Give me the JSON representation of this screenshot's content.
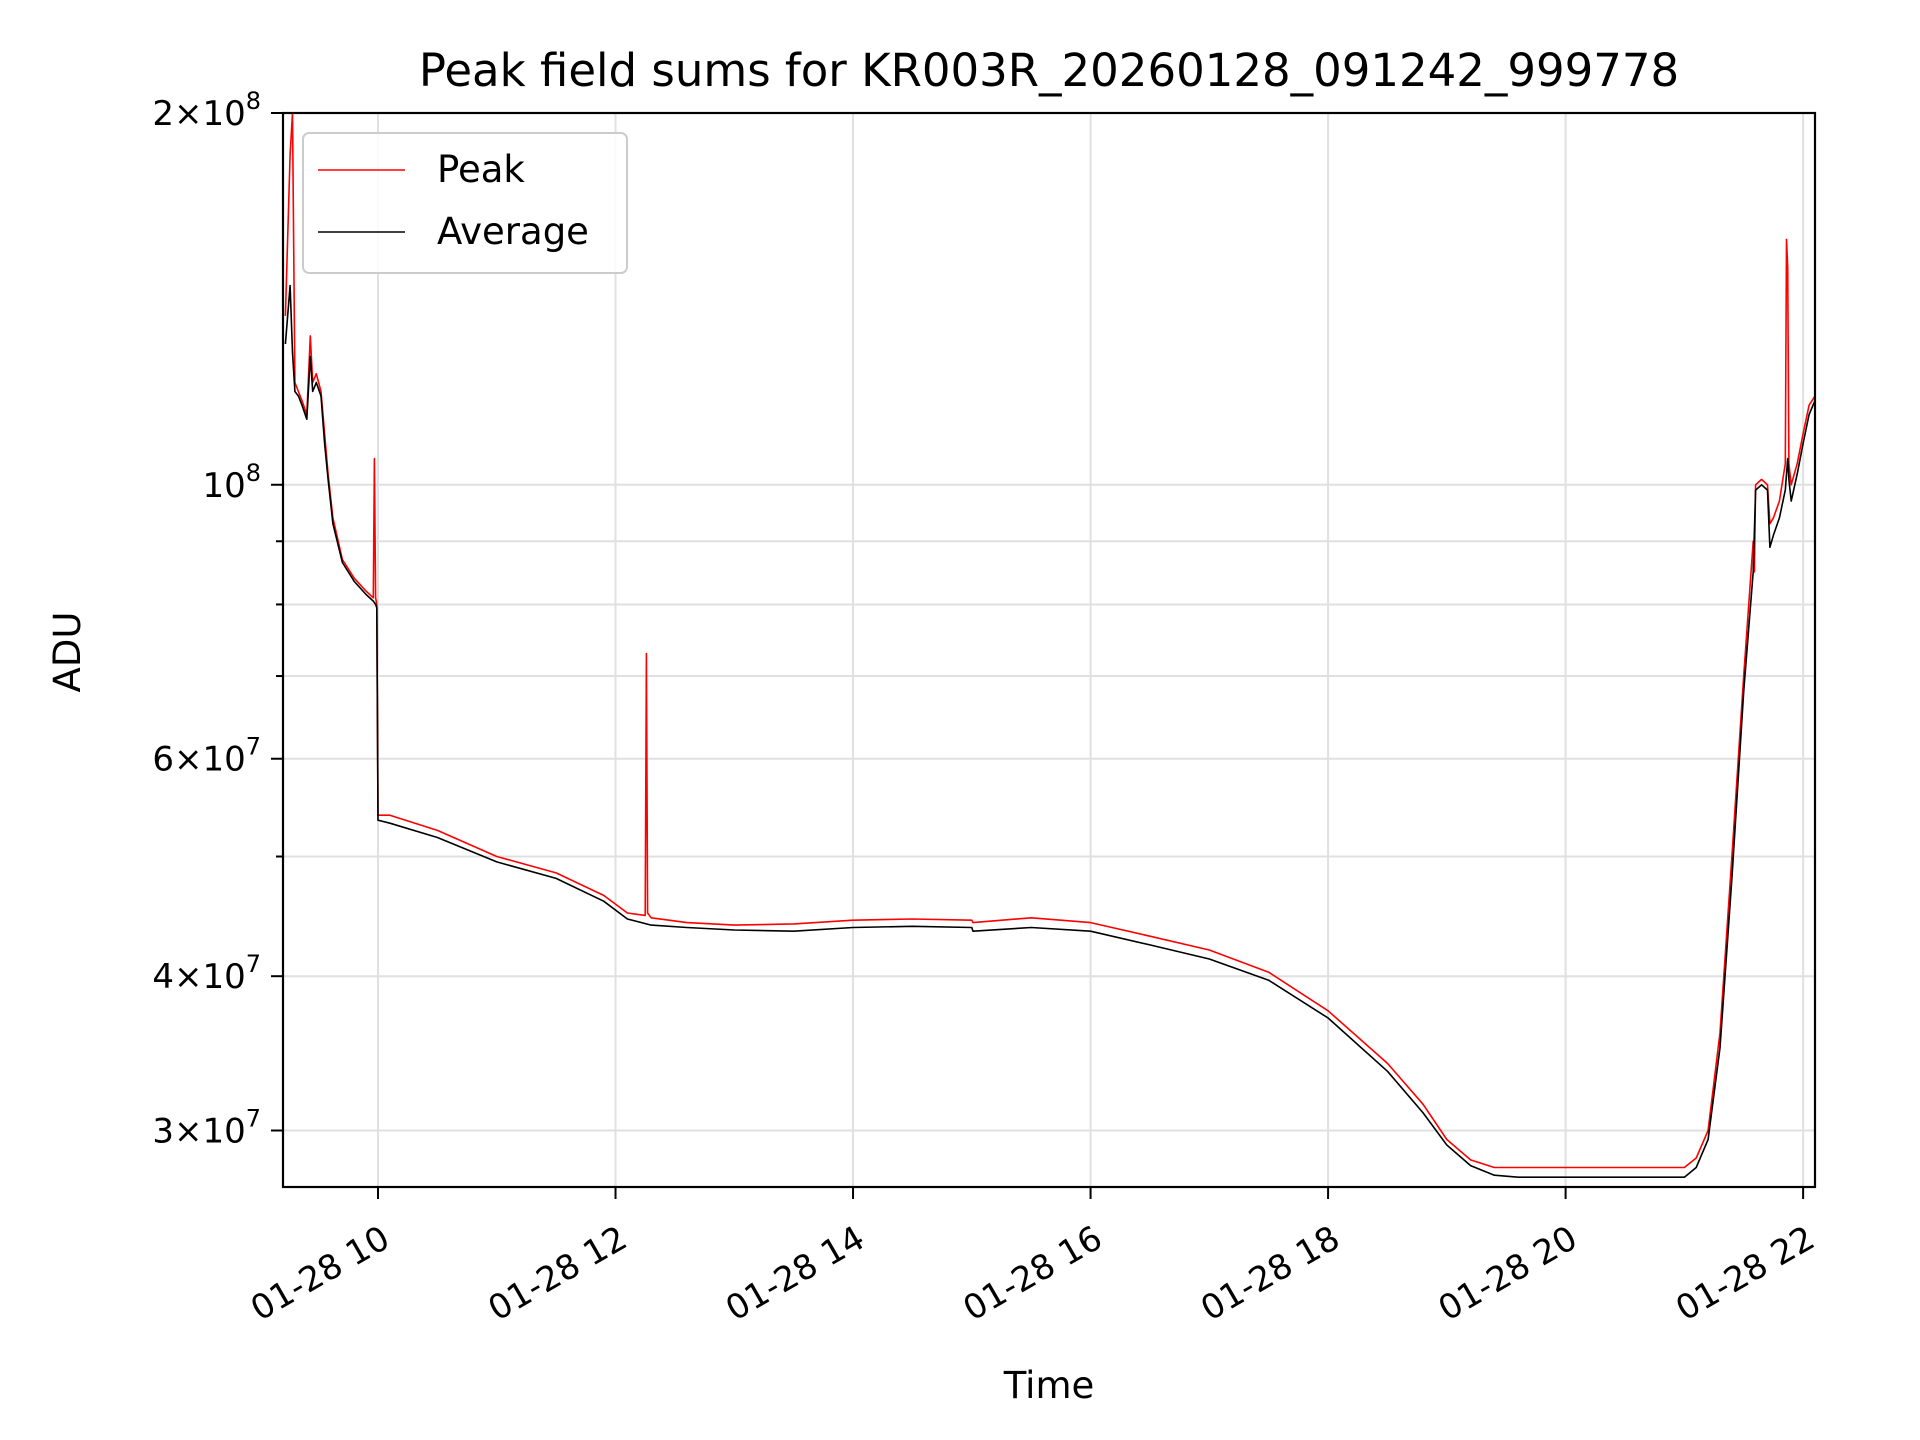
{
  "chart_data": {
    "type": "line",
    "title": "Peak field sums for KR003R_20260128_091242_999778",
    "xlabel": "Time",
    "ylabel": "ADU",
    "xlim": [
      9.2,
      22.1
    ],
    "x_unit": "hours on 01-28",
    "ylim": [
      27000000,
      200000000
    ],
    "yscale": "log",
    "grid": true,
    "legend_position": "upper left",
    "x_ticks": [
      {
        "value": 10,
        "label": "01-28 10"
      },
      {
        "value": 12,
        "label": "01-28 12"
      },
      {
        "value": 14,
        "label": "01-28 14"
      },
      {
        "value": 16,
        "label": "01-28 16"
      },
      {
        "value": 18,
        "label": "01-28 18"
      },
      {
        "value": 20,
        "label": "01-28 20"
      },
      {
        "value": 22,
        "label": "01-28 22"
      }
    ],
    "y_major_ticks": [
      {
        "value": 30000000,
        "mant": "3",
        "exp": "7"
      },
      {
        "value": 40000000,
        "mant": "4",
        "exp": "7"
      },
      {
        "value": 60000000,
        "mant": "6",
        "exp": "7"
      },
      {
        "value": 100000000,
        "mant": "",
        "exp": "8"
      },
      {
        "value": 200000000,
        "mant": "2",
        "exp": "8"
      }
    ],
    "y_minor_grid": [
      50000000,
      70000000,
      80000000,
      90000000
    ],
    "series": [
      {
        "name": "Peak",
        "color": "#ff0000",
        "x": [
          9.22,
          9.26,
          9.28,
          9.3,
          9.33,
          9.36,
          9.4,
          9.43,
          9.45,
          9.48,
          9.52,
          9.55,
          9.58,
          9.62,
          9.7,
          9.8,
          9.9,
          9.96,
          9.97,
          9.98,
          9.99,
          10.0,
          10.1,
          10.5,
          11.0,
          11.5,
          11.9,
          12.1,
          12.25,
          12.26,
          12.27,
          12.3,
          12.6,
          13.0,
          13.5,
          14.0,
          14.5,
          15.0,
          15.01,
          15.5,
          16.0,
          16.5,
          17.0,
          17.5,
          18.0,
          18.5,
          18.8,
          19.0,
          19.2,
          19.4,
          19.6,
          20.0,
          20.5,
          21.0,
          21.1,
          21.2,
          21.3,
          21.4,
          21.5,
          21.58,
          21.59,
          21.6,
          21.65,
          21.7,
          21.72,
          21.75,
          21.8,
          21.85,
          21.86,
          21.87,
          21.88,
          21.9,
          21.95,
          22.0,
          22.05,
          22.1
        ],
        "y": [
          137000000,
          185000000,
          200000000,
          121000000,
          119000000,
          117000000,
          114000000,
          132000000,
          121000000,
          123000000,
          119000000,
          110000000,
          102000000,
          94000000,
          87000000,
          84000000,
          82000000,
          81000000,
          105000000,
          81000000,
          80000000,
          54000000,
          54000000,
          52500000,
          50000000,
          48500000,
          46500000,
          45000000,
          44800000,
          73000000,
          45000000,
          44600000,
          44200000,
          44000000,
          44100000,
          44400000,
          44500000,
          44400000,
          44200000,
          44600000,
          44200000,
          43100000,
          42000000,
          40300000,
          37500000,
          34000000,
          31500000,
          29500000,
          28400000,
          28000000,
          28000000,
          28000000,
          28000000,
          28000000,
          28500000,
          30000000,
          36000000,
          50000000,
          70000000,
          90000000,
          85000000,
          100000000,
          101000000,
          100000000,
          93000000,
          94000000,
          97000000,
          104000000,
          158000000,
          150000000,
          104000000,
          100000000,
          104000000,
          110000000,
          116000000,
          118000000
        ]
      },
      {
        "name": "Average",
        "color": "#000000",
        "x": [
          9.22,
          9.26,
          9.28,
          9.3,
          9.33,
          9.36,
          9.4,
          9.43,
          9.45,
          9.48,
          9.52,
          9.55,
          9.58,
          9.62,
          9.7,
          9.8,
          9.9,
          9.96,
          9.98,
          9.99,
          10.0,
          10.1,
          10.5,
          11.0,
          11.5,
          11.9,
          12.1,
          12.3,
          12.6,
          13.0,
          13.5,
          14.0,
          14.5,
          15.0,
          15.01,
          15.5,
          16.0,
          16.5,
          17.0,
          17.5,
          18.0,
          18.5,
          18.8,
          19.0,
          19.2,
          19.4,
          19.6,
          20.0,
          20.5,
          21.0,
          21.1,
          21.2,
          21.3,
          21.4,
          21.5,
          21.58,
          21.6,
          21.65,
          21.7,
          21.72,
          21.75,
          21.8,
          21.85,
          21.87,
          21.88,
          21.9,
          21.95,
          22.0,
          22.05,
          22.1
        ],
        "y": [
          130000000,
          145000000,
          128000000,
          119000000,
          118000000,
          116000000,
          113000000,
          127000000,
          119000000,
          121000000,
          118000000,
          108000000,
          101000000,
          93000000,
          86500000,
          83500000,
          81500000,
          80500000,
          80000000,
          79500000,
          53500000,
          53200000,
          51800000,
          49500000,
          48000000,
          46000000,
          44500000,
          44000000,
          43800000,
          43600000,
          43500000,
          43800000,
          43900000,
          43800000,
          43500000,
          43800000,
          43500000,
          42400000,
          41300000,
          39700000,
          37000000,
          33500000,
          31000000,
          29200000,
          28100000,
          27600000,
          27500000,
          27500000,
          27500000,
          27500000,
          28000000,
          29500000,
          35000000,
          48000000,
          68000000,
          85000000,
          99000000,
          100000000,
          99000000,
          89000000,
          91000000,
          94000000,
          99000000,
          105000000,
          101000000,
          97000000,
          102000000,
          108000000,
          114000000,
          117000000
        ]
      }
    ]
  }
}
